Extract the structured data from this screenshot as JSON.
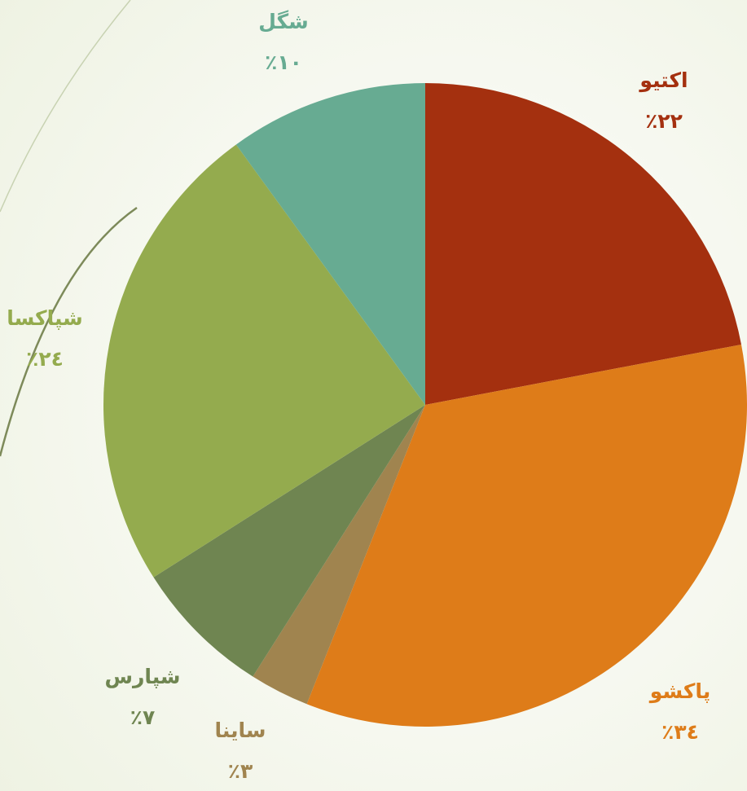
{
  "chart_data": {
    "type": "pie",
    "categories": [
      "اکتیو",
      "پاکشو",
      "ساینا",
      "شپارس",
      "شپاکسا",
      "شگل"
    ],
    "values": [
      22,
      34,
      3,
      7,
      24,
      10
    ],
    "value_labels": [
      "٪۲۲",
      "٪۳٤",
      "٪۳",
      "٪۷",
      "٪۲٤",
      "٪۱۰"
    ],
    "colors": [
      "#a4300f",
      "#de7c19",
      "#a0844f",
      "#6f8551",
      "#94ab4e",
      "#67ab92"
    ]
  }
}
